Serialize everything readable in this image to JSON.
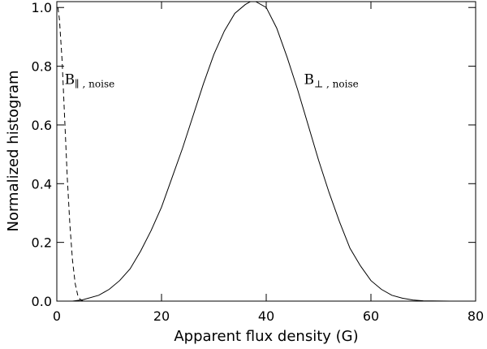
{
  "chart_data": {
    "type": "line",
    "title": "",
    "xlabel": "Apparent flux density (G)",
    "ylabel": "Normalized histogram",
    "xlim": [
      0,
      80
    ],
    "ylim": [
      0,
      1.02
    ],
    "xticks": [
      0,
      20,
      40,
      60,
      80
    ],
    "yticks": [
      0.0,
      0.2,
      0.4,
      0.6,
      0.8,
      1.0
    ],
    "xtick_labels": [
      "0",
      "20",
      "40",
      "60",
      "80"
    ],
    "ytick_labels": [
      "0.0",
      "0.2",
      "0.4",
      "0.6",
      "0.8",
      "1.0"
    ],
    "grid": false,
    "series": [
      {
        "style": "dashed",
        "x": [
          0.2,
          0.5,
          1.0,
          1.5,
          2.0,
          2.5,
          3.0,
          3.5,
          4.0,
          4.5,
          5.0,
          6.0
        ],
        "y": [
          1.0,
          0.96,
          0.82,
          0.62,
          0.42,
          0.26,
          0.14,
          0.06,
          0.02,
          0.005,
          0.0,
          0.0
        ]
      },
      {
        "style": "solid",
        "x": [
          3,
          5,
          8,
          10,
          12,
          14,
          16,
          18,
          20,
          22,
          24,
          26,
          28,
          30,
          32,
          34,
          36,
          37,
          38,
          40,
          42,
          44,
          46,
          48,
          50,
          52,
          54,
          56,
          58,
          60,
          62,
          64,
          66,
          68,
          70,
          75,
          80
        ],
        "y": [
          0.0,
          0.005,
          0.02,
          0.04,
          0.07,
          0.11,
          0.17,
          0.24,
          0.32,
          0.42,
          0.52,
          0.63,
          0.74,
          0.84,
          0.92,
          0.98,
          1.01,
          1.02,
          1.02,
          1.0,
          0.93,
          0.83,
          0.72,
          0.6,
          0.48,
          0.37,
          0.27,
          0.18,
          0.12,
          0.07,
          0.04,
          0.02,
          0.01,
          0.004,
          0.001,
          0.0,
          0.0
        ]
      }
    ],
    "annotations": [
      {
        "main": "B",
        "sub": "∥ , noise",
        "x": 1.5,
        "y": 0.74
      },
      {
        "main": "B",
        "sub": "⊥ , noise",
        "x": 47.2,
        "y": 0.74
      }
    ]
  }
}
